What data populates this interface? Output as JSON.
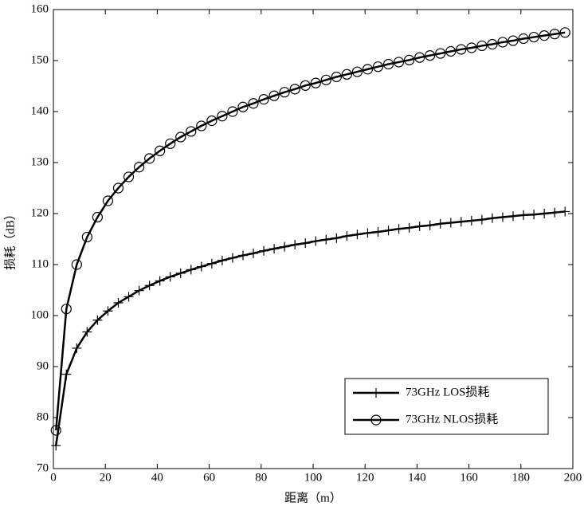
{
  "chart_data": {
    "type": "line",
    "xlabel": "距离（m）",
    "ylabel": "损耗（dB）",
    "x": [
      1,
      5,
      9,
      13,
      17,
      21,
      25,
      29,
      33,
      37,
      41,
      45,
      49,
      53,
      57,
      61,
      65,
      69,
      73,
      77,
      81,
      85,
      89,
      93,
      97,
      101,
      105,
      109,
      113,
      117,
      121,
      125,
      129,
      133,
      137,
      141,
      145,
      149,
      153,
      157,
      161,
      165,
      169,
      173,
      177,
      181,
      185,
      189,
      193,
      197
    ],
    "series": [
      {
        "name": "73GHz LOS损耗",
        "color": "#000000",
        "marker": "plus",
        "values": [
          74.5,
          88.5,
          93.6,
          96.8,
          99.1,
          100.9,
          102.5,
          103.7,
          104.9,
          105.9,
          106.8,
          107.6,
          108.3,
          109.0,
          109.6,
          110.2,
          110.8,
          111.3,
          111.8,
          112.2,
          112.7,
          113.1,
          113.5,
          113.9,
          114.2,
          114.6,
          114.9,
          115.2,
          115.6,
          115.9,
          116.2,
          116.4,
          116.7,
          117.0,
          117.2,
          117.5,
          117.7,
          118.0,
          118.2,
          118.4,
          118.6,
          118.8,
          119.1,
          119.3,
          119.5,
          119.7,
          119.8,
          120.0,
          120.2,
          120.4
        ]
      },
      {
        "name": "73GHz NLOS损耗",
        "color": "#000000",
        "marker": "circle",
        "values": [
          77.5,
          101.3,
          110.0,
          115.4,
          119.3,
          122.5,
          125.0,
          127.2,
          129.1,
          130.8,
          132.3,
          133.7,
          135.0,
          136.1,
          137.2,
          138.2,
          139.1,
          140.0,
          140.9,
          141.6,
          142.4,
          143.1,
          143.8,
          144.4,
          145.1,
          145.6,
          146.2,
          146.8,
          147.3,
          147.8,
          148.3,
          148.8,
          149.3,
          149.7,
          150.1,
          150.6,
          151.0,
          151.4,
          151.8,
          152.2,
          152.5,
          152.9,
          153.2,
          153.6,
          153.9,
          154.3,
          154.6,
          154.9,
          155.2,
          155.5
        ]
      }
    ],
    "xlim": [
      0,
      200
    ],
    "xticks": [
      0,
      20,
      40,
      60,
      80,
      100,
      120,
      140,
      160,
      180,
      200
    ],
    "ylim": [
      70,
      160
    ],
    "yticks": [
      70,
      80,
      90,
      100,
      110,
      120,
      130,
      140,
      150,
      160
    ],
    "grid": false,
    "legend": "lower right"
  }
}
